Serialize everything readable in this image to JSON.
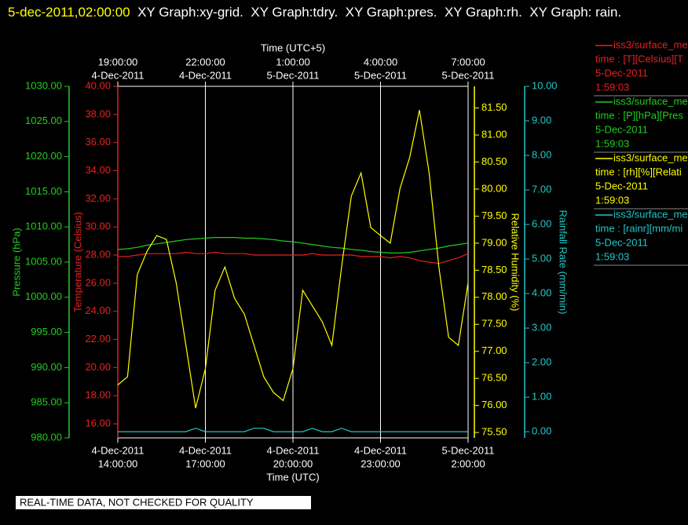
{
  "chart_data": {
    "type": "line",
    "title_time": "5-dec-2011,02:00:00",
    "title": "XY Graph:xy-grid.  XY Graph:tdry.  XY Graph:pres.  XY Graph:rh.  XY Graph: rain.",
    "x_label": "Time (UTC)",
    "x2_label": "Time (UTC+5)",
    "footer": "REAL-TIME DATA, NOT CHECKED FOR QUALITY",
    "grid": true,
    "xlim": [
      "2011-12-04 14:00",
      "2011-12-05 02:00"
    ],
    "xticks": [
      {
        "value": "2011-12-04 14:00",
        "label": [
          "4-Dec-2011",
          "14:00:00"
        ]
      },
      {
        "value": "2011-12-04 17:00",
        "label": [
          "4-Dec-2011",
          "17:00:00"
        ]
      },
      {
        "value": "2011-12-04 20:00",
        "label": [
          "4-Dec-2011",
          "20:00:00"
        ]
      },
      {
        "value": "2011-12-04 23:00",
        "label": [
          "4-Dec-2011",
          "23:00:00"
        ]
      },
      {
        "value": "2011-12-05 02:00",
        "label": [
          "5-Dec-2011",
          "2:00:00"
        ]
      }
    ],
    "x2ticks": [
      {
        "value": "2011-12-04 14:00",
        "label": [
          "19:00:00",
          "4-Dec-2011"
        ]
      },
      {
        "value": "2011-12-04 17:00",
        "label": [
          "22:00:00",
          "4-Dec-2011"
        ]
      },
      {
        "value": "2011-12-04 20:00",
        "label": [
          "1:00:00",
          "5-Dec-2011"
        ]
      },
      {
        "value": "2011-12-04 23:00",
        "label": [
          "4:00:00",
          "5-Dec-2011"
        ]
      },
      {
        "value": "2011-12-05 02:00",
        "label": [
          "7:00:00",
          "5-Dec-2011"
        ]
      }
    ],
    "axes": [
      {
        "label": "Pressure (hPa)",
        "color": "#22cc22",
        "ylim": [
          980,
          1030
        ],
        "yticks": [
          {
            "value": 980,
            "label": "980.00"
          },
          {
            "value": 985,
            "label": "985.00"
          },
          {
            "value": 990,
            "label": "990.00"
          },
          {
            "value": 995,
            "label": "995.00"
          },
          {
            "value": 1000,
            "label": "1000.00"
          },
          {
            "value": 1005,
            "label": "1005.00"
          },
          {
            "value": 1010,
            "label": "1010.00"
          },
          {
            "value": 1015,
            "label": "1015.00"
          },
          {
            "value": 1020,
            "label": "1020.00"
          },
          {
            "value": 1025,
            "label": "1025.00"
          },
          {
            "value": 1030,
            "label": "1030.00"
          }
        ]
      },
      {
        "label": "Temperature (Celsius)",
        "color": "#e82020",
        "ylim": [
          15,
          40
        ],
        "yticks": [
          {
            "value": 16,
            "label": "16.00"
          },
          {
            "value": 18,
            "label": "18.00"
          },
          {
            "value": 20,
            "label": "20.00"
          },
          {
            "value": 22,
            "label": "22.00"
          },
          {
            "value": 24,
            "label": "24.00"
          },
          {
            "value": 26,
            "label": "26.00"
          },
          {
            "value": 28,
            "label": "28.00"
          },
          {
            "value": 30,
            "label": "30.00"
          },
          {
            "value": 32,
            "label": "32.00"
          },
          {
            "value": 34,
            "label": "34.00"
          },
          {
            "value": 36,
            "label": "36.00"
          },
          {
            "value": 38,
            "label": "38.00"
          },
          {
            "value": 40,
            "label": "40.00"
          }
        ]
      },
      {
        "label": "Relative Humidity (%)",
        "color": "#ffff00",
        "ylim": [
          75.4,
          81.9
        ],
        "yticks": [
          {
            "value": 75.5,
            "label": "75.50"
          },
          {
            "value": 76,
            "label": "76.00"
          },
          {
            "value": 76.5,
            "label": "76.50"
          },
          {
            "value": 77,
            "label": "77.00"
          },
          {
            "value": 77.5,
            "label": "77.50"
          },
          {
            "value": 78,
            "label": "78.00"
          },
          {
            "value": 78.5,
            "label": "78.50"
          },
          {
            "value": 79,
            "label": "79.00"
          },
          {
            "value": 79.5,
            "label": "79.50"
          },
          {
            "value": 80,
            "label": "80.00"
          },
          {
            "value": 80.5,
            "label": "80.50"
          },
          {
            "value": 81,
            "label": "81.00"
          },
          {
            "value": 81.5,
            "label": "81.50"
          }
        ]
      },
      {
        "label": "Rainfall Rate (mm/min)",
        "color": "#20c8c8",
        "ylim": [
          -0.18,
          10
        ],
        "yticks": [
          {
            "value": 0,
            "label": "0.00"
          },
          {
            "value": 1,
            "label": "1.00"
          },
          {
            "value": 2,
            "label": "2.00"
          },
          {
            "value": 3,
            "label": "3.00"
          },
          {
            "value": 4,
            "label": "4.00"
          },
          {
            "value": 5,
            "label": "5.00"
          },
          {
            "value": 6,
            "label": "6.00"
          },
          {
            "value": 7,
            "label": "7.00"
          },
          {
            "value": 8,
            "label": "8.00"
          },
          {
            "value": 9,
            "label": "9.00"
          },
          {
            "value": 10,
            "label": "10.00"
          }
        ]
      }
    ],
    "x": [
      "2011-12-04 14:00",
      "2011-12-04 14:20",
      "2011-12-04 14:40",
      "2011-12-04 15:00",
      "2011-12-04 15:20",
      "2011-12-04 15:40",
      "2011-12-04 16:00",
      "2011-12-04 16:20",
      "2011-12-04 16:40",
      "2011-12-04 17:00",
      "2011-12-04 17:20",
      "2011-12-04 17:40",
      "2011-12-04 18:00",
      "2011-12-04 18:20",
      "2011-12-04 18:40",
      "2011-12-04 19:00",
      "2011-12-04 19:20",
      "2011-12-04 19:40",
      "2011-12-04 20:00",
      "2011-12-04 20:20",
      "2011-12-04 20:40",
      "2011-12-04 21:00",
      "2011-12-04 21:20",
      "2011-12-04 21:40",
      "2011-12-04 22:00",
      "2011-12-04 22:20",
      "2011-12-04 22:40",
      "2011-12-04 23:00",
      "2011-12-04 23:20",
      "2011-12-04 23:40",
      "2011-12-05 00:00",
      "2011-12-05 00:20",
      "2011-12-05 00:40",
      "2011-12-05 01:00",
      "2011-12-05 01:20",
      "2011-12-05 01:40",
      "2011-12-05 02:00"
    ],
    "series": [
      {
        "name": "iss3/surface_me",
        "legend_detail": "time : [T][Celsius][T",
        "legend_date": "5-Dec-2011",
        "legend_time": "1:59:03",
        "color": "#e82020",
        "axis": 1,
        "values": [
          27.9,
          27.9,
          28.0,
          28.1,
          28.1,
          28.1,
          28.1,
          28.2,
          28.1,
          28.1,
          28.2,
          28.1,
          28.1,
          28.1,
          28.0,
          28.0,
          28.0,
          28.0,
          28.0,
          28.0,
          28.1,
          28.0,
          28.0,
          28.0,
          28.0,
          27.9,
          27.9,
          27.9,
          27.8,
          27.9,
          27.8,
          27.6,
          27.5,
          27.4,
          27.6,
          27.8,
          28.1
        ]
      },
      {
        "name": "iss3/surface_me",
        "legend_detail": "time : [P][hPa][Pres",
        "legend_date": "5-Dec-2011",
        "legend_time": "1:59:03",
        "color": "#22cc22",
        "axis": 0,
        "values": [
          1006.8,
          1006.9,
          1007.1,
          1007.4,
          1007.6,
          1007.8,
          1008.0,
          1008.2,
          1008.3,
          1008.4,
          1008.5,
          1008.5,
          1008.5,
          1008.4,
          1008.4,
          1008.3,
          1008.2,
          1008.0,
          1007.9,
          1007.7,
          1007.5,
          1007.3,
          1007.1,
          1007.0,
          1006.8,
          1006.7,
          1006.5,
          1006.4,
          1006.3,
          1006.3,
          1006.4,
          1006.6,
          1006.8,
          1007.0,
          1007.3,
          1007.5,
          1007.7
        ]
      },
      {
        "name": "iss3/surface_me",
        "legend_detail": "time : [rh][%][Relati",
        "legend_date": "5-Dec-2011",
        "legend_time": "1:59:03",
        "color": "#ffff00",
        "axis": 2,
        "values": [
          76.38,
          76.53,
          78.42,
          78.85,
          79.14,
          79.07,
          78.27,
          77.11,
          75.95,
          76.68,
          78.13,
          78.56,
          77.98,
          77.69,
          77.11,
          76.53,
          76.24,
          76.09,
          76.68,
          78.13,
          77.84,
          77.55,
          77.11,
          78.56,
          79.87,
          80.3,
          79.29,
          79.14,
          79.0,
          80.01,
          80.59,
          81.46,
          80.3,
          78.56,
          77.26,
          77.11,
          78.27
        ]
      },
      {
        "name": "iss3/surface_me",
        "legend_detail": "time : [rainr][mm/mi",
        "legend_date": "5-Dec-2011",
        "legend_time": "1:59:03",
        "color": "#20c8c8",
        "axis": 3,
        "values": [
          0,
          0,
          0,
          0,
          0,
          0,
          0,
          0,
          0.1,
          0,
          0,
          0,
          0,
          0,
          0.1,
          0.1,
          0,
          0,
          0,
          0,
          0.1,
          0,
          0,
          0.1,
          0,
          0,
          0,
          0,
          0,
          0,
          0,
          0,
          0,
          0,
          0,
          0,
          0
        ]
      }
    ]
  }
}
